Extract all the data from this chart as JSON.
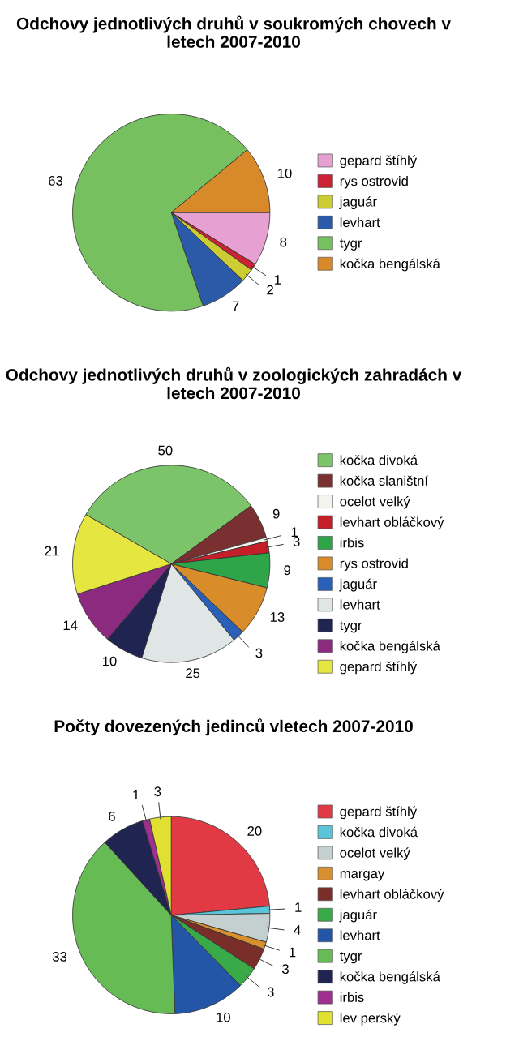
{
  "chart_data": [
    {
      "type": "pie",
      "title": "Odchovy jednotlivých druhů v soukromých chovech v letech 2007-2010",
      "categories": [
        "gepard štíhlý",
        "rys ostrovid",
        "jaguár",
        "levhart",
        "tygr",
        "kočka bengálská"
      ],
      "values": [
        8,
        1,
        2,
        7,
        63,
        10
      ],
      "colors": [
        "#e6a0d2",
        "#cc2233",
        "#cccc33",
        "#2a5aa8",
        "#77c060",
        "#d88a2a"
      ],
      "data_labels": true,
      "legend": "right"
    },
    {
      "type": "pie",
      "title": "Odchovy jednotlivých druhů v zoologických zahradách v letech 2007-2010",
      "categories": [
        "kočka divoká",
        "kočka slaništní",
        "ocelot velký",
        "levhart obláčkový",
        "irbis",
        "rys ostrovid",
        "jaguár",
        "levhart",
        "tygr",
        "kočka bengálská",
        "gepard štíhlý"
      ],
      "values": [
        50,
        9,
        1,
        3,
        9,
        13,
        3,
        25,
        10,
        14,
        21
      ],
      "colors": [
        "#7cc46a",
        "#7a3030",
        "#f4f4ee",
        "#c41e28",
        "#2fa54a",
        "#d98c2a",
        "#2a60b8",
        "#e0e6e6",
        "#1f2550",
        "#8c2a80",
        "#e6e640"
      ],
      "data_labels": true,
      "legend": "right"
    },
    {
      "type": "pie",
      "title": "Počty dovezených jedinců vletech 2007-2010",
      "categories": [
        "gepard štíhlý",
        "kočka divoká",
        "ocelot velký",
        "margay",
        "levhart obláčkový",
        "jaguár",
        "levhart",
        "tygr",
        "kočka bengálská",
        "irbis",
        "lev perský"
      ],
      "values": [
        20,
        1,
        4,
        1,
        3,
        3,
        10,
        33,
        6,
        1,
        3
      ],
      "colors": [
        "#e23a44",
        "#5ac4d8",
        "#c4cfcf",
        "#d8902e",
        "#7a2e2a",
        "#3aaa48",
        "#2456a8",
        "#66bb55",
        "#1f2550",
        "#a03090",
        "#e0e030"
      ],
      "data_labels": true,
      "legend": "right"
    }
  ]
}
